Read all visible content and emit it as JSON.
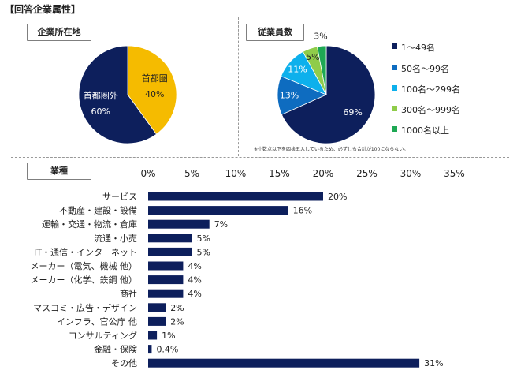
{
  "header": {
    "title": "【回答企業属性】"
  },
  "location": {
    "label": "企業所在地",
    "chart_data": {
      "type": "pie",
      "slices": [
        {
          "name": "首都圏",
          "value": 40,
          "label": "40%",
          "color": "#f5bb00"
        },
        {
          "name": "首都圏外",
          "value": 60,
          "label": "60%",
          "color": "#0d1f5c"
        }
      ]
    }
  },
  "employees": {
    "label": "従業員数",
    "note": "※小数点以下を四捨五入しているため、必ずしも合計が100にならない。",
    "chart_data": {
      "type": "pie",
      "slices": [
        {
          "name": "1～49名",
          "value": 69,
          "label": "69%",
          "color": "#0d1f5c"
        },
        {
          "name": "50名～99名",
          "value": 13,
          "label": "13%",
          "color": "#0e6cc0"
        },
        {
          "name": "100名～299名",
          "value": 11,
          "label": "11%",
          "color": "#0db0ec"
        },
        {
          "name": "300名～999名",
          "value": 5,
          "label": "5%",
          "color": "#8fcc4a"
        },
        {
          "name": "1000名以上",
          "value": 3,
          "label": "3%",
          "color": "#1ea854"
        }
      ]
    }
  },
  "industry": {
    "label": "業種",
    "chart_data": {
      "type": "bar",
      "orientation": "horizontal",
      "color": "#0d1f5c",
      "categories": [
        "サービス",
        "不動産・建設・設備",
        "運輸・交通・物流・倉庫",
        "流通・小売",
        "IT・通信・インターネット",
        "メーカー（電気、機械 他）",
        "メーカー（化学、鉄鋼 他）",
        "商社",
        "マスコミ・広告・デザイン",
        "インフラ、官公庁 他",
        "コンサルティング",
        "金融・保険",
        "その他"
      ],
      "values": [
        20,
        16,
        7,
        5,
        5,
        4,
        4,
        4,
        2,
        2,
        1,
        0.4,
        31
      ],
      "value_labels": [
        "20%",
        "16%",
        "7%",
        "5%",
        "5%",
        "4%",
        "4%",
        "4%",
        "2%",
        "2%",
        "1%",
        "0.4%",
        "31%"
      ],
      "xticks": [
        "0%",
        "5%",
        "10%",
        "15%",
        "20%",
        "25%",
        "30%",
        "35%"
      ],
      "xlim": [
        0,
        35
      ]
    }
  }
}
